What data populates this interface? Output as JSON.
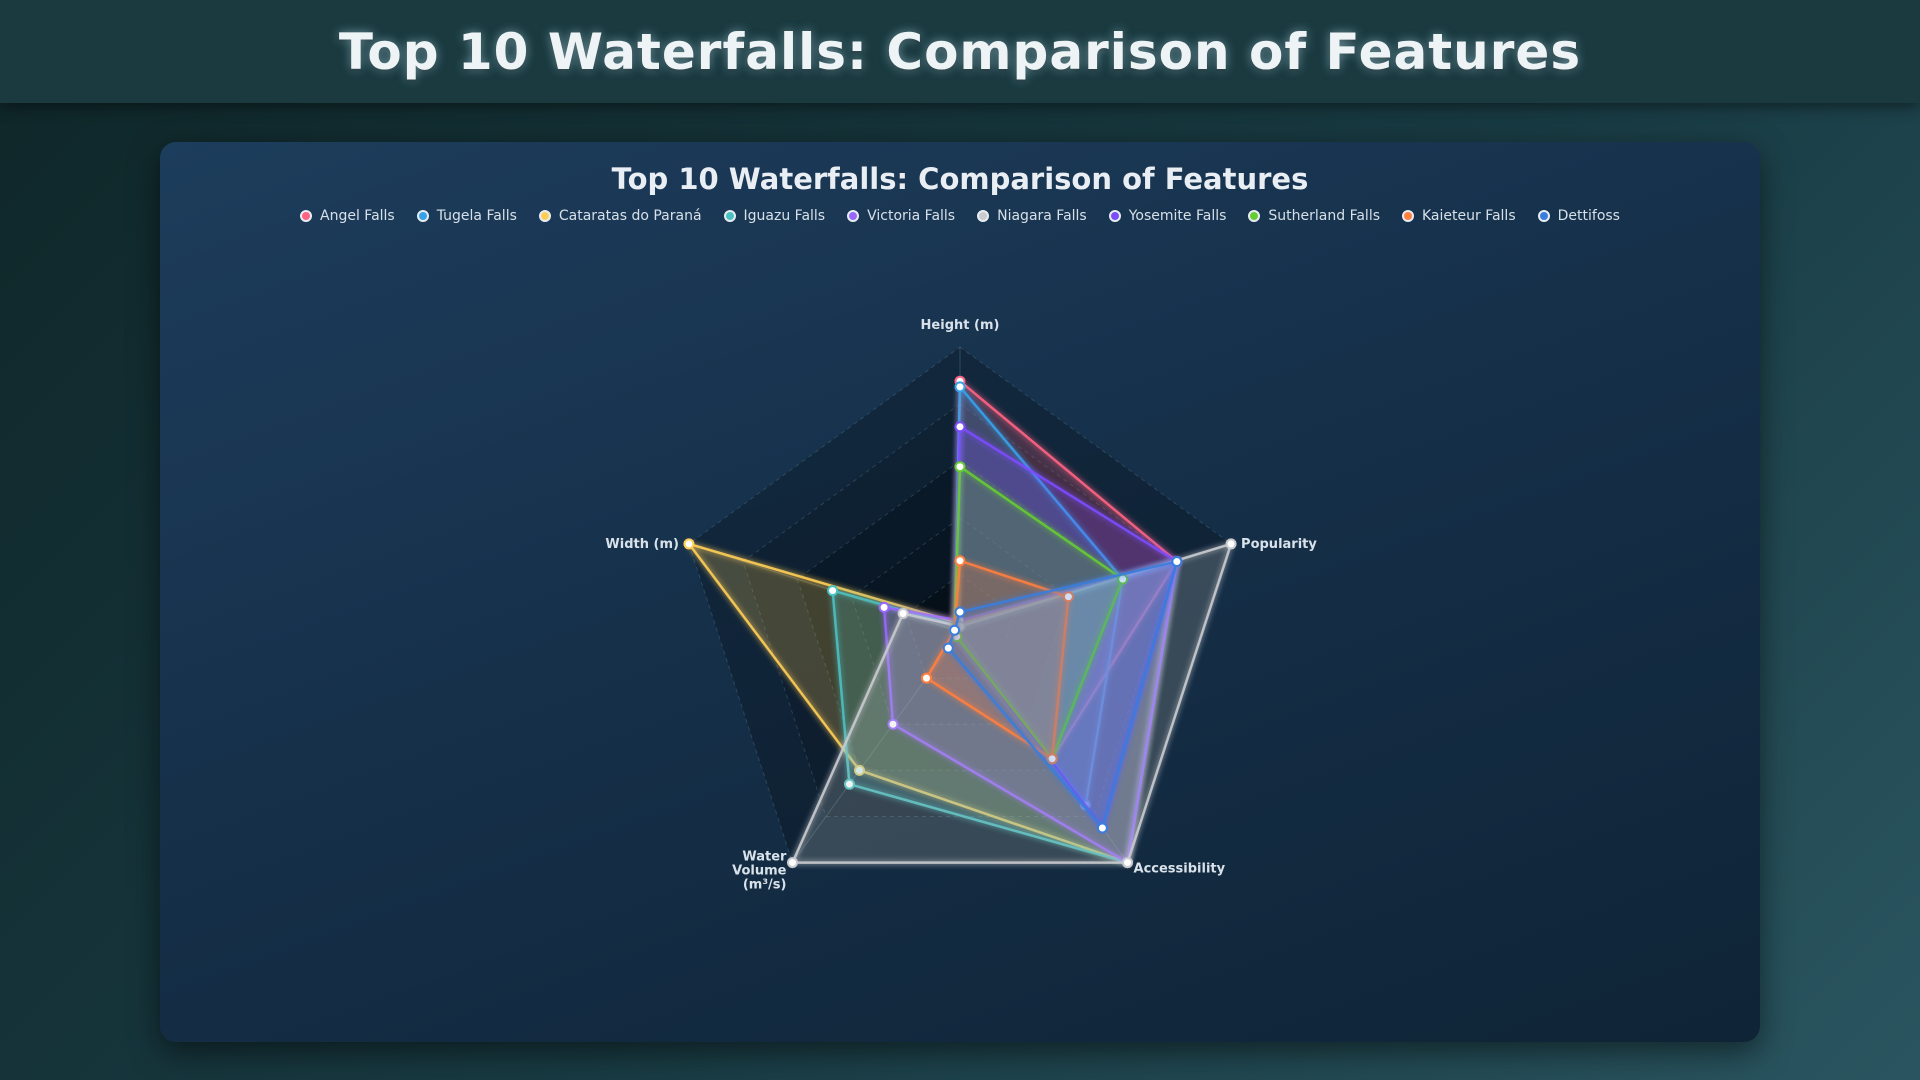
{
  "page": {
    "title": "Top 10 Waterfalls: Comparison of Features"
  },
  "chart_data": {
    "type": "radar",
    "title": "Top 10 Waterfalls: Comparison of Features",
    "axes": [
      "Height (m)",
      "Popularity",
      "Accessibility",
      "Water Volume (m³/s)",
      "Width (m)"
    ],
    "scale": [
      0,
      100
    ],
    "grid": true,
    "legend_position": "top",
    "series": [
      {
        "name": "Angel Falls",
        "color": "#ff6384",
        "values": [
          88,
          80,
          55,
          2,
          2
        ]
      },
      {
        "name": "Tugela Falls",
        "color": "#36a2eb",
        "values": [
          86,
          60,
          75,
          2,
          2
        ]
      },
      {
        "name": "Cataratas do Paraná",
        "color": "#ffce56",
        "values": [
          3,
          80,
          100,
          60,
          100
        ]
      },
      {
        "name": "Iguazu Falls",
        "color": "#4bc0c0",
        "values": [
          2,
          80,
          100,
          66,
          47
        ]
      },
      {
        "name": "Victoria Falls",
        "color": "#9966ff",
        "values": [
          4,
          80,
          100,
          40,
          28
        ]
      },
      {
        "name": "Niagara Falls",
        "color": "#c9cbcf",
        "values": [
          2,
          100,
          100,
          100,
          21
        ]
      },
      {
        "name": "Yosemite Falls",
        "color": "#7c4dff",
        "values": [
          72,
          80,
          85,
          2,
          2
        ]
      },
      {
        "name": "Sutherland Falls",
        "color": "#66cc33",
        "values": [
          58,
          60,
          55,
          2,
          2
        ]
      },
      {
        "name": "Kaieteur Falls",
        "color": "#ff7f3f",
        "values": [
          25,
          40,
          55,
          20,
          2
        ]
      },
      {
        "name": "Dettifoss",
        "color": "#3b7ddd",
        "values": [
          7,
          80,
          85,
          7,
          2
        ]
      }
    ]
  }
}
